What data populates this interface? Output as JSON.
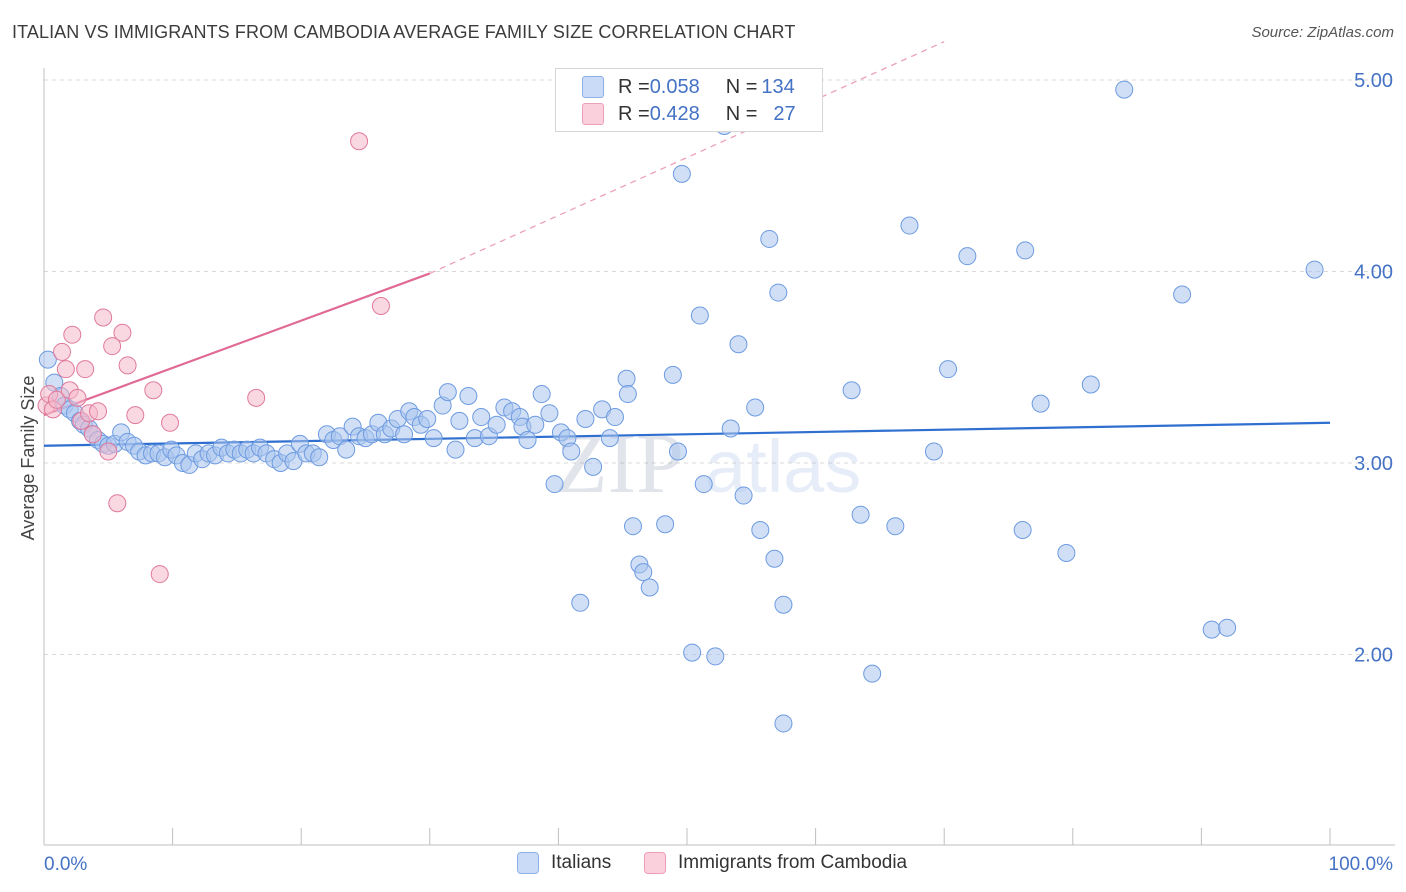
{
  "header": {
    "title": "ITALIAN VS IMMIGRANTS FROM CAMBODIA AVERAGE FAMILY SIZE CORRELATION CHART",
    "source": "Source: ZipAtlas.com"
  },
  "watermark": {
    "zip": "ZIP",
    "atlas": "atlas"
  },
  "legend": {
    "rows": [
      {
        "r_label": "R = ",
        "r_value": "0.058",
        "n_label": "N = ",
        "n_value": "134",
        "color": "#a9c4ee"
      },
      {
        "r_label": "R = ",
        "r_value": "0.428",
        "n_label": "N = ",
        "n_value": "27",
        "color": "#f5b8cb"
      }
    ]
  },
  "bottom_legend": [
    {
      "label": "Italians",
      "color": "#a9c4ee"
    },
    {
      "label": "Immigrants from Cambodia",
      "color": "#f5b8cb"
    }
  ],
  "chart_data": {
    "type": "scatter",
    "title": "ITALIAN VS IMMIGRANTS FROM CAMBODIA AVERAGE FAMILY SIZE CORRELATION CHART",
    "xlabel": "",
    "ylabel": "Average Family Size",
    "xlim": [
      0,
      100
    ],
    "ylim": [
      1.0,
      5.2
    ],
    "x_tick_labels": [
      "0.0%",
      "100.0%"
    ],
    "y_ticks": [
      2.0,
      3.0,
      4.0,
      5.0
    ],
    "y_tick_labels": [
      "2.00",
      "3.00",
      "4.00",
      "5.00"
    ],
    "grid": true,
    "legend_position": "top-center",
    "series": [
      {
        "name": "Italians",
        "color": "#6d9be0",
        "fill": "#a9c4ee",
        "trend": {
          "x": [
            0,
            100
          ],
          "y": [
            3.09,
            3.21
          ],
          "color": "#2f6fcf"
        },
        "points": [
          [
            0.3,
            3.54
          ],
          [
            0.8,
            3.42
          ],
          [
            1.3,
            3.35
          ],
          [
            1.6,
            3.3
          ],
          [
            2.0,
            3.28
          ],
          [
            2.4,
            3.26
          ],
          [
            2.8,
            3.22
          ],
          [
            3.1,
            3.2
          ],
          [
            3.5,
            3.18
          ],
          [
            3.8,
            3.15
          ],
          [
            4.2,
            3.12
          ],
          [
            4.6,
            3.1
          ],
          [
            5.0,
            3.09
          ],
          [
            5.5,
            3.1
          ],
          [
            6.0,
            3.16
          ],
          [
            6.5,
            3.11
          ],
          [
            7.0,
            3.09
          ],
          [
            7.4,
            3.06
          ],
          [
            7.9,
            3.04
          ],
          [
            8.4,
            3.05
          ],
          [
            8.9,
            3.05
          ],
          [
            9.4,
            3.03
          ],
          [
            9.9,
            3.07
          ],
          [
            10.3,
            3.04
          ],
          [
            10.8,
            3.0
          ],
          [
            11.3,
            2.99
          ],
          [
            11.8,
            3.05
          ],
          [
            12.3,
            3.02
          ],
          [
            12.8,
            3.05
          ],
          [
            13.3,
            3.04
          ],
          [
            13.8,
            3.08
          ],
          [
            14.3,
            3.05
          ],
          [
            14.8,
            3.07
          ],
          [
            15.3,
            3.05
          ],
          [
            15.8,
            3.07
          ],
          [
            16.3,
            3.05
          ],
          [
            16.8,
            3.08
          ],
          [
            17.3,
            3.05
          ],
          [
            17.9,
            3.02
          ],
          [
            18.4,
            3.0
          ],
          [
            18.9,
            3.05
          ],
          [
            19.4,
            3.01
          ],
          [
            19.9,
            3.1
          ],
          [
            20.4,
            3.05
          ],
          [
            20.9,
            3.05
          ],
          [
            21.4,
            3.03
          ],
          [
            22.0,
            3.15
          ],
          [
            22.5,
            3.12
          ],
          [
            23.0,
            3.14
          ],
          [
            23.5,
            3.07
          ],
          [
            24.0,
            3.19
          ],
          [
            24.5,
            3.14
          ],
          [
            25.0,
            3.13
          ],
          [
            25.5,
            3.15
          ],
          [
            26.0,
            3.21
          ],
          [
            26.5,
            3.15
          ],
          [
            27.0,
            3.18
          ],
          [
            27.5,
            3.23
          ],
          [
            28.0,
            3.15
          ],
          [
            28.4,
            3.27
          ],
          [
            28.8,
            3.24
          ],
          [
            29.3,
            3.2
          ],
          [
            29.8,
            3.23
          ],
          [
            30.3,
            3.13
          ],
          [
            31.0,
            3.3
          ],
          [
            31.4,
            3.37
          ],
          [
            32.0,
            3.07
          ],
          [
            32.3,
            3.22
          ],
          [
            33.0,
            3.35
          ],
          [
            33.5,
            3.13
          ],
          [
            34.0,
            3.24
          ],
          [
            34.6,
            3.14
          ],
          [
            35.2,
            3.2
          ],
          [
            35.8,
            3.29
          ],
          [
            36.4,
            3.27
          ],
          [
            37.0,
            3.24
          ],
          [
            37.2,
            3.19
          ],
          [
            37.6,
            3.12
          ],
          [
            38.2,
            3.2
          ],
          [
            38.7,
            3.36
          ],
          [
            39.3,
            3.26
          ],
          [
            39.7,
            2.89
          ],
          [
            40.2,
            3.16
          ],
          [
            40.7,
            3.13
          ],
          [
            41.0,
            3.06
          ],
          [
            41.7,
            2.27
          ],
          [
            42.1,
            3.23
          ],
          [
            42.7,
            2.98
          ],
          [
            43.4,
            3.28
          ],
          [
            44.0,
            3.13
          ],
          [
            44.4,
            3.24
          ],
          [
            45.3,
            3.44
          ],
          [
            45.4,
            3.36
          ],
          [
            45.8,
            2.67
          ],
          [
            46.3,
            2.47
          ],
          [
            46.6,
            2.43
          ],
          [
            47.1,
            2.35
          ],
          [
            48.3,
            2.68
          ],
          [
            48.9,
            3.46
          ],
          [
            49.3,
            3.06
          ],
          [
            49.6,
            4.51
          ],
          [
            50.4,
            2.01
          ],
          [
            51.0,
            3.77
          ],
          [
            51.3,
            2.89
          ],
          [
            52.2,
            1.99
          ],
          [
            52.9,
            4.76
          ],
          [
            53.4,
            3.18
          ],
          [
            54.0,
            3.62
          ],
          [
            54.4,
            2.83
          ],
          [
            55.3,
            3.29
          ],
          [
            55.7,
            2.65
          ],
          [
            56.4,
            4.17
          ],
          [
            56.8,
            2.5
          ],
          [
            57.1,
            3.89
          ],
          [
            57.5,
            2.26
          ],
          [
            57.5,
            1.64
          ],
          [
            62.8,
            3.38
          ],
          [
            63.5,
            2.73
          ],
          [
            64.4,
            1.9
          ],
          [
            66.2,
            2.67
          ],
          [
            67.3,
            4.24
          ],
          [
            69.2,
            3.06
          ],
          [
            70.3,
            3.49
          ],
          [
            71.8,
            4.08
          ],
          [
            76.1,
            2.65
          ],
          [
            76.3,
            4.11
          ],
          [
            77.5,
            3.31
          ],
          [
            79.5,
            2.53
          ],
          [
            81.4,
            3.41
          ],
          [
            84.0,
            4.95
          ],
          [
            88.5,
            3.88
          ],
          [
            90.8,
            2.13
          ],
          [
            92.0,
            2.14
          ],
          [
            98.8,
            4.01
          ]
        ]
      },
      {
        "name": "Immigrants from Cambodia",
        "color": "#e07a9c",
        "fill": "#f5b8cb",
        "trend": {
          "x": [
            0,
            30
          ],
          "y": [
            3.25,
            3.99
          ],
          "color": "#e06a95",
          "dashed_extension_to": [
            70,
            5.2
          ]
        },
        "points": [
          [
            0.2,
            3.3
          ],
          [
            0.4,
            3.36
          ],
          [
            0.7,
            3.28
          ],
          [
            1.0,
            3.33
          ],
          [
            1.4,
            3.58
          ],
          [
            1.7,
            3.49
          ],
          [
            2.0,
            3.38
          ],
          [
            2.2,
            3.67
          ],
          [
            2.6,
            3.34
          ],
          [
            2.9,
            3.22
          ],
          [
            3.2,
            3.49
          ],
          [
            3.5,
            3.26
          ],
          [
            3.8,
            3.15
          ],
          [
            4.2,
            3.27
          ],
          [
            4.6,
            3.76
          ],
          [
            5.0,
            3.06
          ],
          [
            5.3,
            3.61
          ],
          [
            5.7,
            2.79
          ],
          [
            6.1,
            3.68
          ],
          [
            6.5,
            3.51
          ],
          [
            7.1,
            3.25
          ],
          [
            8.5,
            3.38
          ],
          [
            9.0,
            2.42
          ],
          [
            9.8,
            3.21
          ],
          [
            16.5,
            3.34
          ],
          [
            24.5,
            4.68
          ],
          [
            26.2,
            3.82
          ]
        ]
      }
    ]
  }
}
